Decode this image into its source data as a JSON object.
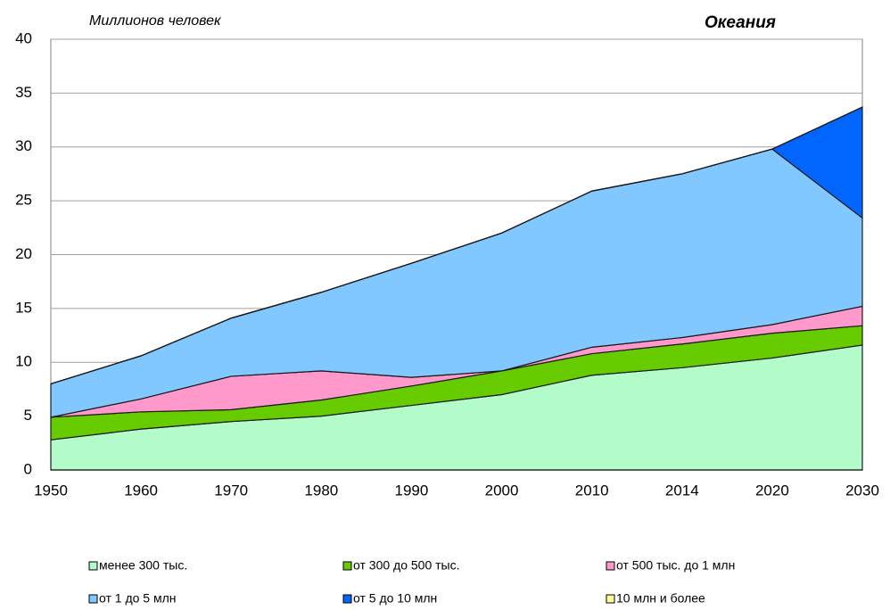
{
  "chart_data": {
    "type": "stacked_area",
    "title": "Океания",
    "y_label": "Миллионов человек",
    "categories": [
      "1950",
      "1960",
      "1970",
      "1980",
      "1990",
      "2000",
      "2010",
      "2014",
      "2020",
      "2030"
    ],
    "series": [
      {
        "name": "менее 300 тыс.",
        "color": "#b3fcc9",
        "values": [
          2.8,
          3.8,
          4.5,
          5.0,
          6.0,
          7.0,
          8.8,
          9.5,
          10.4,
          11.6
        ]
      },
      {
        "name": "от 300 до 500 тыс.",
        "color": "#66cc00",
        "values": [
          2.1,
          1.6,
          1.1,
          1.5,
          1.8,
          2.2,
          2.0,
          2.2,
          2.3,
          1.8
        ]
      },
      {
        "name": "от 500 тыс. до 1 млн",
        "color": "#ff99cc",
        "values": [
          0,
          1.2,
          3.1,
          2.7,
          0.8,
          0,
          0.6,
          0.6,
          0.8,
          1.8
        ]
      },
      {
        "name": "от 1 до 5 млн",
        "color": "#80c8ff",
        "values": [
          3.1,
          4.0,
          5.4,
          7.3,
          10.6,
          12.8,
          14.5,
          15.2,
          16.3,
          8.2
        ]
      },
      {
        "name": "от 5 до 10 млн",
        "color": "#0066ff",
        "values": [
          0,
          0,
          0,
          0,
          0,
          0,
          0,
          0,
          0,
          10.3
        ]
      },
      {
        "name": "10 млн и более",
        "color": "#ffff99",
        "values": [
          0,
          0,
          0,
          0,
          0,
          0,
          0,
          0,
          0,
          0
        ]
      }
    ],
    "ylim": [
      0,
      40
    ],
    "yticks": [
      0,
      5,
      10,
      15,
      20,
      25,
      30,
      35,
      40
    ],
    "grid": true
  }
}
